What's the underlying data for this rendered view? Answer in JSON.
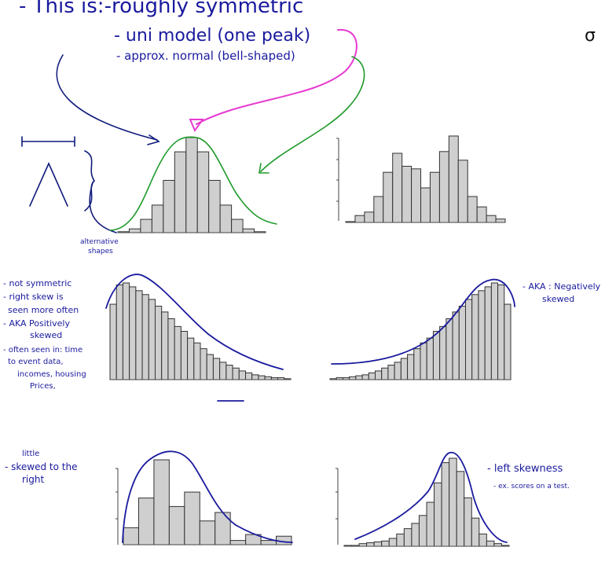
{
  "notes": {
    "header_line1": "- This is:-roughly symmetric",
    "header_line2": "- uni model (one peak)",
    "header_line3": "- approx. normal (bell-shaped)",
    "sigma": "σ",
    "alt_label_1": "alternative",
    "alt_label_2": "shapes",
    "right_skew": [
      "- not symmetric",
      "- right skew is",
      "seen more often",
      "- AKA Positively",
      "skewed",
      "- often seen in: time",
      "to event data,",
      "incomes, housing",
      "Prices,"
    ],
    "neg_skew_1": "- AKA : Negatively",
    "neg_skew_2": "skewed",
    "little_1": "little",
    "little_2": "- skewed to the",
    "little_3": "right",
    "left_skew_1": "- left skewness",
    "left_skew_2": "- ex. scores on a test."
  },
  "histograms": [
    {
      "id": "symmetric",
      "values": [
        1,
        4,
        14,
        29,
        55,
        85,
        100,
        85,
        55,
        29,
        14,
        4,
        1
      ]
    },
    {
      "id": "bimodal",
      "values": [
        1,
        8,
        12,
        30,
        58,
        80,
        65,
        62,
        40,
        58,
        82,
        100,
        72,
        30,
        18,
        8,
        4
      ]
    },
    {
      "id": "right-skew",
      "values": [
        78,
        98,
        100,
        96,
        92,
        88,
        83,
        76,
        70,
        63,
        55,
        50,
        43,
        38,
        32,
        26,
        22,
        18,
        15,
        12,
        9,
        7,
        5,
        4,
        3,
        2,
        2,
        1
      ]
    },
    {
      "id": "left-skew",
      "values": [
        1,
        2,
        2,
        3,
        4,
        5,
        7,
        9,
        12,
        15,
        18,
        22,
        26,
        32,
        38,
        43,
        50,
        55,
        63,
        70,
        76,
        83,
        88,
        92,
        96,
        100,
        98,
        78
      ]
    },
    {
      "id": "little-right",
      "values": [
        20,
        55,
        100,
        45,
        62,
        28,
        38,
        5,
        12,
        5,
        10
      ]
    },
    {
      "id": "peaked-left",
      "values": [
        1,
        1,
        3,
        4,
        5,
        6,
        9,
        14,
        20,
        26,
        35,
        50,
        72,
        95,
        100,
        85,
        55,
        32,
        14,
        6,
        3,
        1
      ]
    }
  ]
}
